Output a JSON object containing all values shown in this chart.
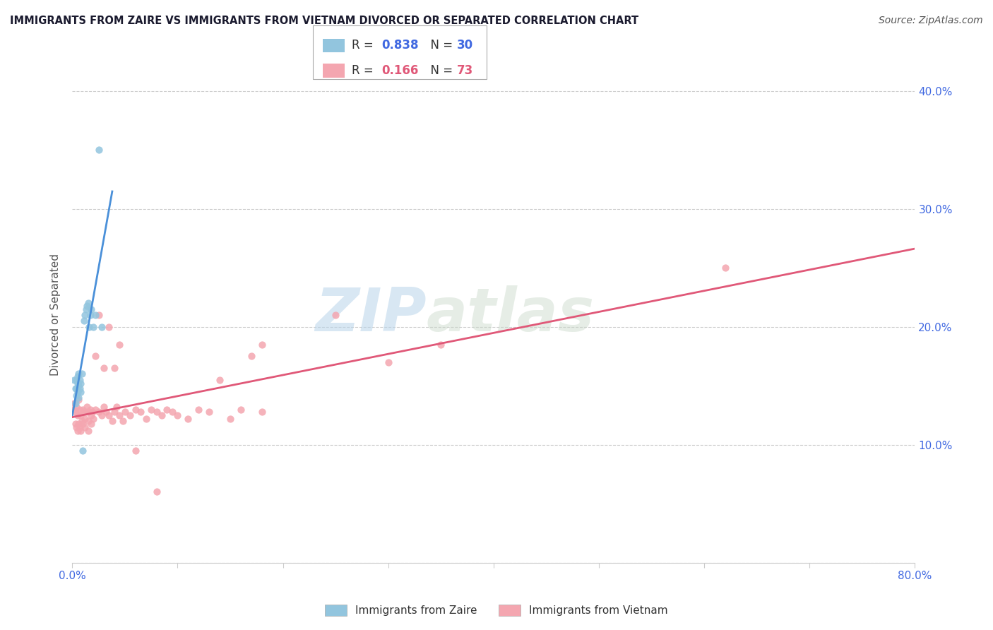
{
  "title": "IMMIGRANTS FROM ZAIRE VS IMMIGRANTS FROM VIETNAM DIVORCED OR SEPARATED CORRELATION CHART",
  "source": "Source: ZipAtlas.com",
  "ylabel": "Divorced or Separated",
  "xlim": [
    0.0,
    0.8
  ],
  "ylim": [
    0.0,
    0.42
  ],
  "zaire_R": "0.838",
  "zaire_N": "30",
  "vietnam_R": "0.166",
  "vietnam_N": "73",
  "zaire_color": "#92c5de",
  "vietnam_color": "#f4a6b0",
  "zaire_line_color": "#4a90d9",
  "vietnam_line_color": "#e05878",
  "watermark_zip": "ZIP",
  "watermark_atlas": "atlas",
  "background_color": "#ffffff",
  "grid_color": "#cccccc",
  "zaire_x": [
    0.002,
    0.003,
    0.004,
    0.004,
    0.005,
    0.005,
    0.006,
    0.006,
    0.007,
    0.007,
    0.008,
    0.008,
    0.009,
    0.01,
    0.011,
    0.012,
    0.013,
    0.014,
    0.015,
    0.016,
    0.017,
    0.018,
    0.02,
    0.022,
    0.025,
    0.028,
    0.003,
    0.004,
    0.005,
    0.006
  ],
  "zaire_y": [
    0.155,
    0.135,
    0.148,
    0.155,
    0.145,
    0.158,
    0.15,
    0.16,
    0.148,
    0.155,
    0.152,
    0.145,
    0.16,
    0.095,
    0.205,
    0.21,
    0.215,
    0.218,
    0.22,
    0.2,
    0.21,
    0.215,
    0.2,
    0.21,
    0.35,
    0.2,
    0.148,
    0.142,
    0.152,
    0.14
  ],
  "vietnam_x": [
    0.001,
    0.002,
    0.003,
    0.004,
    0.005,
    0.006,
    0.007,
    0.008,
    0.009,
    0.01,
    0.011,
    0.012,
    0.013,
    0.014,
    0.015,
    0.016,
    0.017,
    0.018,
    0.019,
    0.02,
    0.022,
    0.025,
    0.028,
    0.03,
    0.032,
    0.035,
    0.038,
    0.04,
    0.042,
    0.045,
    0.048,
    0.05,
    0.055,
    0.06,
    0.065,
    0.07,
    0.075,
    0.08,
    0.085,
    0.09,
    0.095,
    0.1,
    0.11,
    0.12,
    0.13,
    0.14,
    0.15,
    0.16,
    0.17,
    0.18,
    0.003,
    0.004,
    0.005,
    0.006,
    0.007,
    0.008,
    0.01,
    0.012,
    0.015,
    0.018,
    0.022,
    0.025,
    0.03,
    0.035,
    0.04,
    0.045,
    0.18,
    0.25,
    0.3,
    0.35,
    0.62,
    0.06,
    0.08
  ],
  "vietnam_y": [
    0.13,
    0.135,
    0.128,
    0.132,
    0.125,
    0.138,
    0.13,
    0.125,
    0.12,
    0.13,
    0.128,
    0.122,
    0.128,
    0.132,
    0.12,
    0.128,
    0.13,
    0.125,
    0.128,
    0.122,
    0.13,
    0.128,
    0.125,
    0.132,
    0.128,
    0.125,
    0.12,
    0.128,
    0.132,
    0.125,
    0.12,
    0.128,
    0.125,
    0.13,
    0.128,
    0.122,
    0.13,
    0.128,
    0.125,
    0.13,
    0.128,
    0.125,
    0.122,
    0.13,
    0.128,
    0.155,
    0.122,
    0.13,
    0.175,
    0.128,
    0.118,
    0.115,
    0.112,
    0.118,
    0.115,
    0.112,
    0.118,
    0.115,
    0.112,
    0.118,
    0.175,
    0.21,
    0.165,
    0.2,
    0.165,
    0.185,
    0.185,
    0.21,
    0.17,
    0.185,
    0.25,
    0.095,
    0.06
  ]
}
